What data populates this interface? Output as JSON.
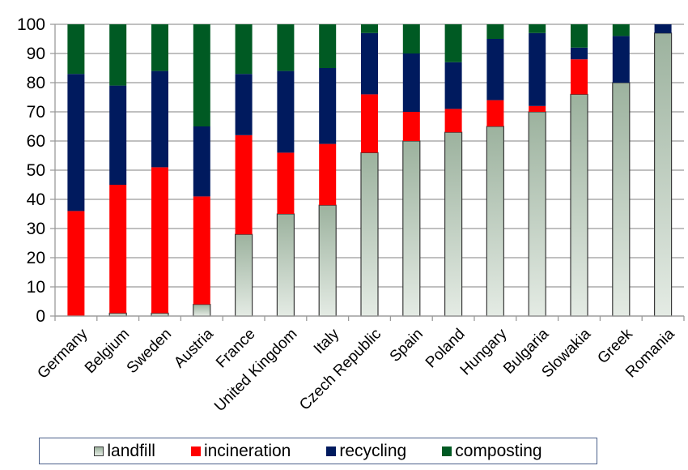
{
  "chart_data": {
    "type": "bar",
    "stacked": true,
    "title": "",
    "xlabel": "",
    "ylabel": "",
    "ylim": [
      0,
      100
    ],
    "yticks": [
      0,
      10,
      20,
      30,
      40,
      50,
      60,
      70,
      80,
      90,
      100
    ],
    "grid": true,
    "legend_position": "bottom",
    "categories": [
      "Germany",
      "Belgium",
      "Sweden",
      "Austria",
      "France",
      "United Kingdom",
      "Italy",
      "Czech Republic",
      "Spain",
      "Poland",
      "Hungary",
      "Bulgaria",
      "Slowakia",
      "Greek",
      "Romania"
    ],
    "series": [
      {
        "name": "landfill",
        "color": "#a3b5a3",
        "values": [
          0,
          1,
          1,
          4,
          28,
          35,
          38,
          56,
          60,
          63,
          65,
          70,
          76,
          80,
          97
        ]
      },
      {
        "name": "incineration",
        "color": "#ff0000",
        "values": [
          36,
          44,
          50,
          37,
          34,
          21,
          21,
          20,
          10,
          8,
          9,
          2,
          12,
          0,
          0
        ]
      },
      {
        "name": "recycling",
        "color": "#001a5e",
        "values": [
          47,
          34,
          33,
          24,
          21,
          28,
          26,
          21,
          20,
          16,
          21,
          25,
          4,
          16,
          3
        ]
      },
      {
        "name": "composting",
        "color": "#005a23",
        "values": [
          17,
          21,
          16,
          35,
          17,
          16,
          15,
          3,
          10,
          13,
          5,
          3,
          8,
          4,
          0
        ]
      }
    ]
  }
}
